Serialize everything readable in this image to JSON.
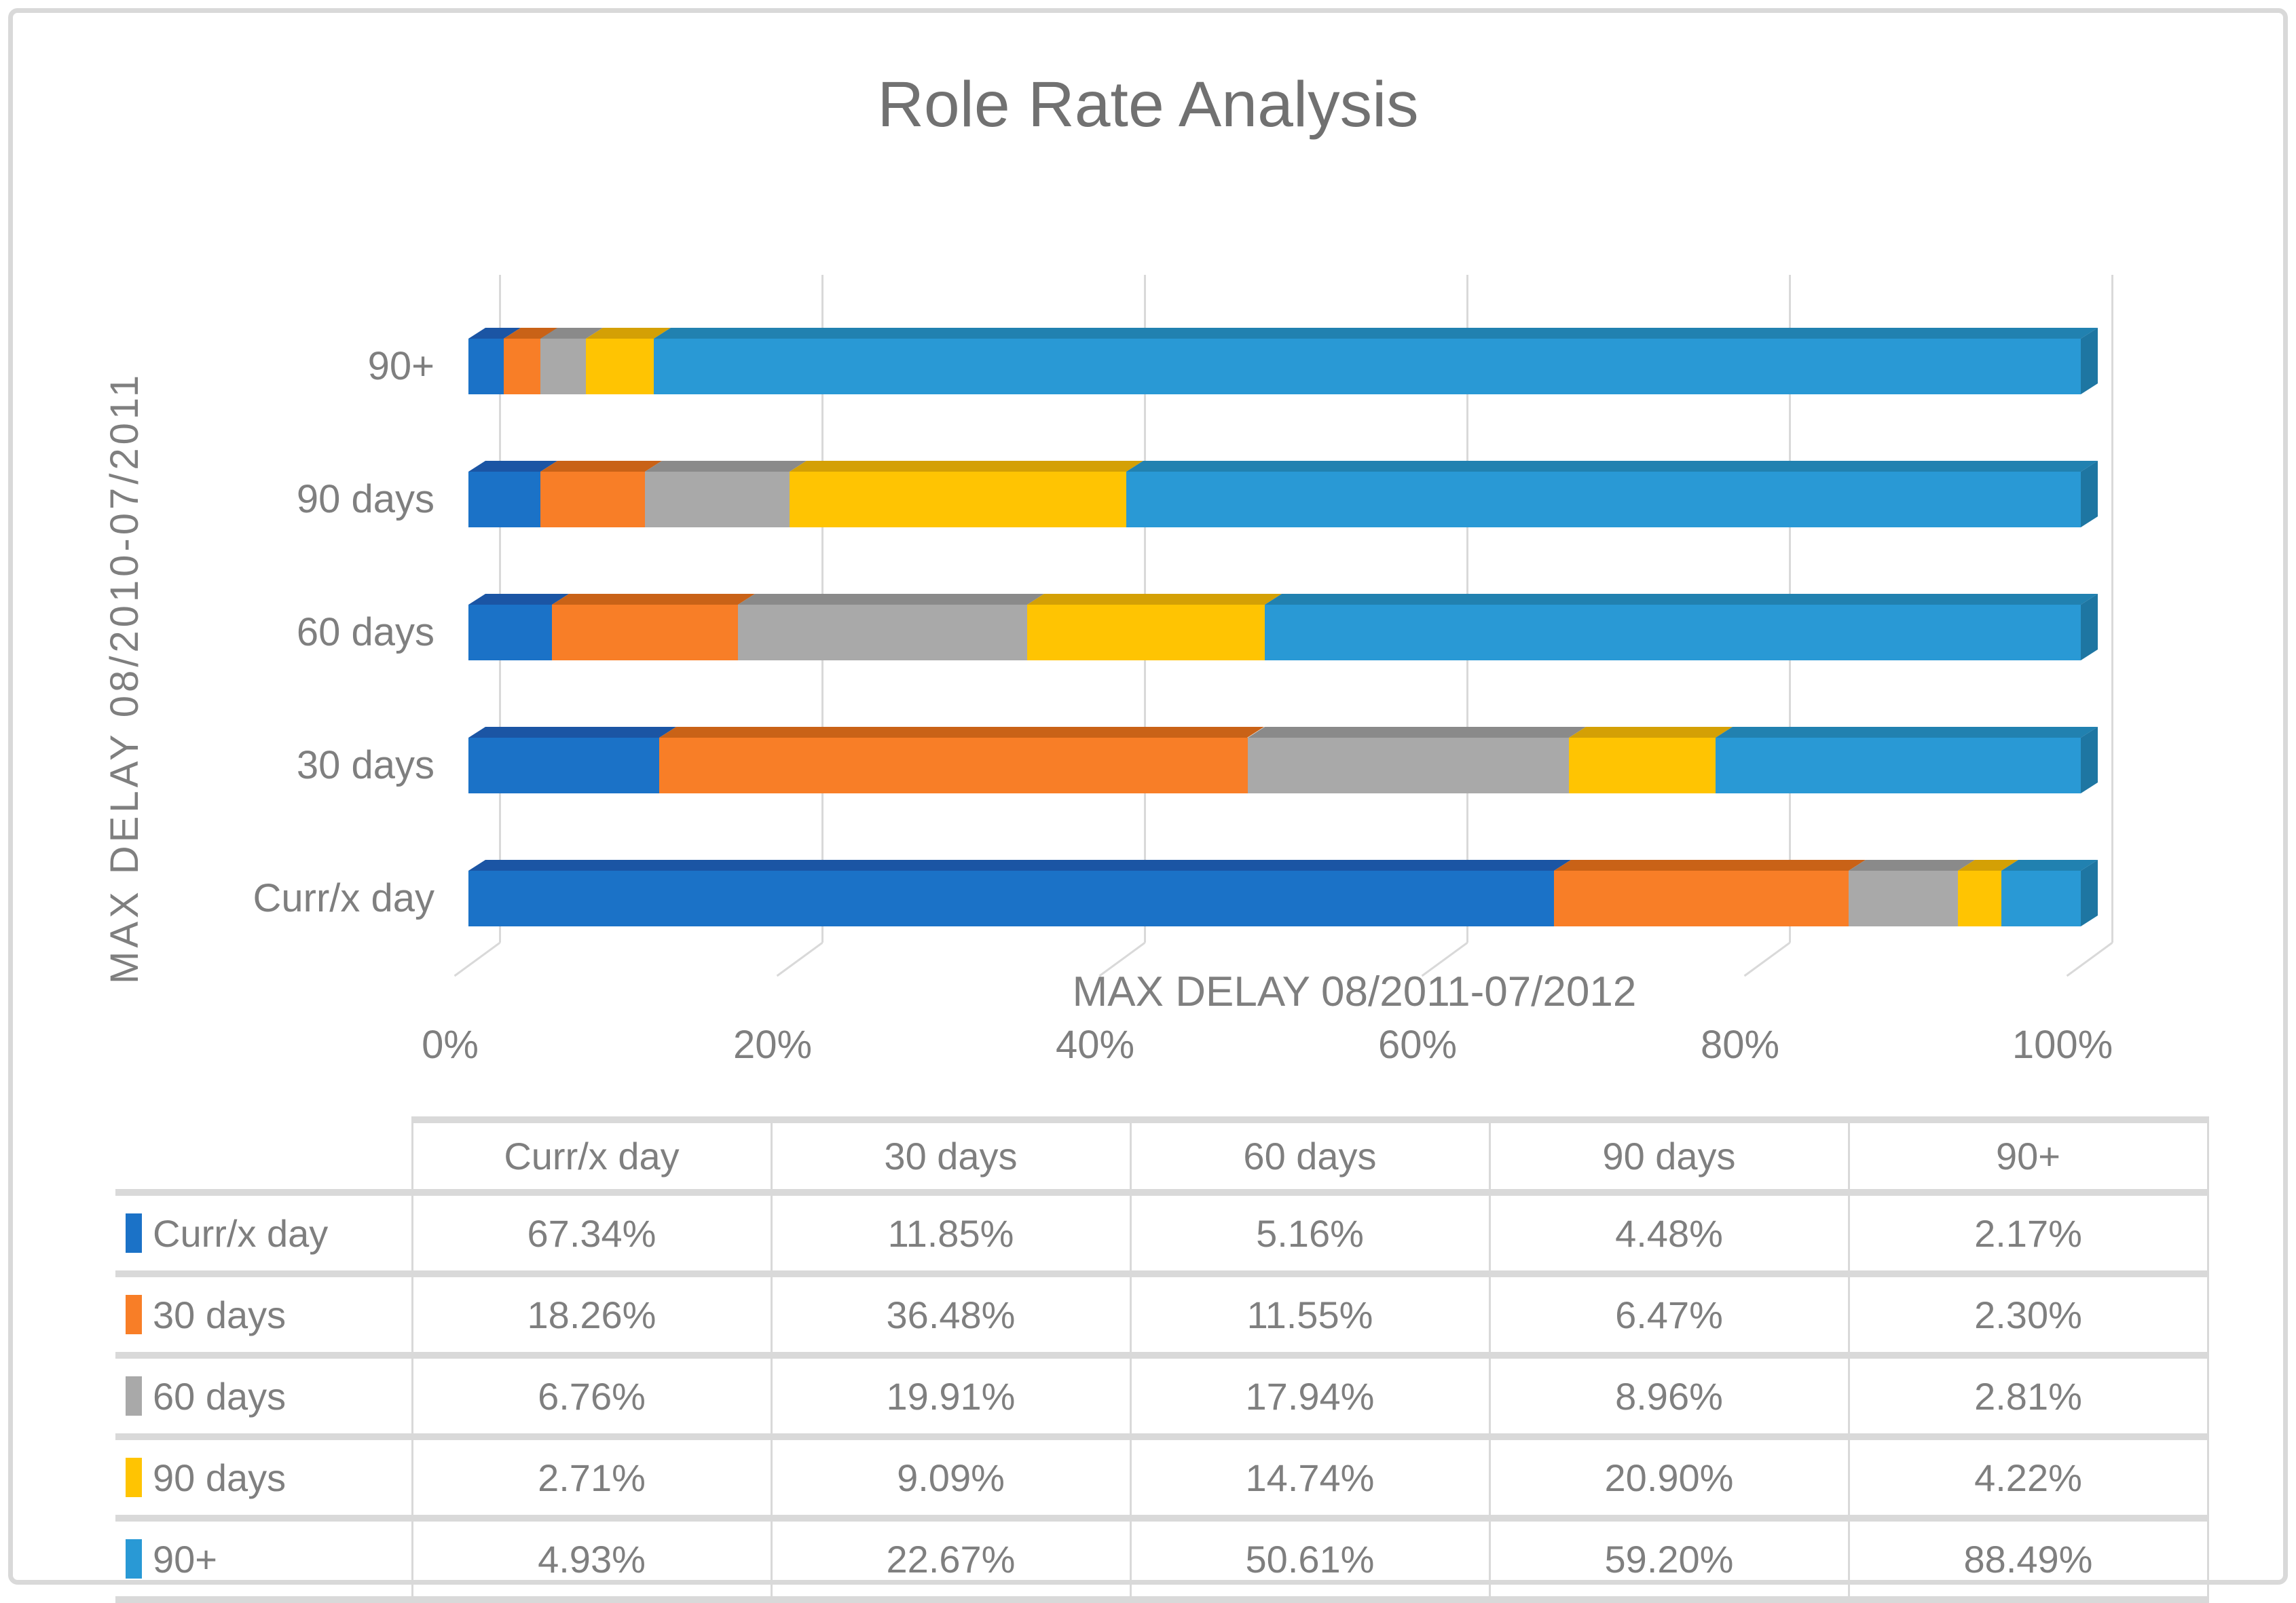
{
  "title": {
    "text": "Role Rate Analysis",
    "color": "#717171"
  },
  "axes": {
    "y_title": "MAX DELAY 08/2010-07/2011",
    "x_title": "MAX DELAY 08/2011-07/2012",
    "x_ticks": [
      "0%",
      "20%",
      "40%",
      "60%",
      "80%",
      "100%"
    ],
    "categories_top_to_bottom": [
      "90+",
      "90 days",
      "60 days",
      "30 days",
      "Curr/x day"
    ],
    "text_color": "#7F7F7F",
    "gridline_color": "#D9D9D9"
  },
  "chart_data": {
    "type": "bar",
    "orientation": "horizontal",
    "stacked": true,
    "percent_stacked": true,
    "style": "3d",
    "title": "Role Rate Analysis",
    "x_axis_title": "MAX DELAY 08/2011-07/2012",
    "y_axis_title": "MAX DELAY 08/2010-07/2011",
    "xlim": [
      0,
      100
    ],
    "x_tick_labels": [
      "0%",
      "20%",
      "40%",
      "60%",
      "80%",
      "100%"
    ],
    "grid": true,
    "legend_position": "table-below",
    "categories": [
      "Curr/x day",
      "30 days",
      "60 days",
      "90 days",
      "90+"
    ],
    "series": [
      {
        "name": "Curr/x day",
        "color": "#1B72C7",
        "color_top": "#1B55A4",
        "color_side": "#174A90",
        "values": [
          67.34,
          11.85,
          5.16,
          4.48,
          2.17
        ]
      },
      {
        "name": "30 days",
        "color": "#F87E27",
        "color_top": "#C96217",
        "color_side": "#B65813",
        "values": [
          18.26,
          36.48,
          11.55,
          6.47,
          2.3
        ]
      },
      {
        "name": "60 days",
        "color": "#A9A9A9",
        "color_top": "#8A8A8A",
        "color_side": "#7D7D7D",
        "values": [
          6.76,
          19.91,
          17.94,
          8.96,
          2.81
        ]
      },
      {
        "name": "90 days",
        "color": "#FFC402",
        "color_top": "#D4A005",
        "color_side": "#C09104",
        "values": [
          2.71,
          9.09,
          14.74,
          20.9,
          4.22
        ]
      },
      {
        "name": "90+",
        "color": "#2999D5",
        "color_top": "#2181B0",
        "color_side": "#1E76A2",
        "values": [
          4.93,
          22.67,
          50.61,
          59.2,
          88.49
        ]
      }
    ]
  },
  "table": {
    "headers": [
      "",
      "Curr/x day",
      "30 days",
      "60 days",
      "90 days",
      "90+"
    ],
    "rows": [
      {
        "label": "Curr/x day",
        "swatch": "#1B72C7",
        "values": [
          "67.34%",
          "11.85%",
          "5.16%",
          "4.48%",
          "2.17%"
        ]
      },
      {
        "label": "30 days",
        "swatch": "#F87E27",
        "values": [
          "18.26%",
          "36.48%",
          "11.55%",
          "6.47%",
          "2.30%"
        ]
      },
      {
        "label": "60 days",
        "swatch": "#A9A9A9",
        "values": [
          "6.76%",
          "19.91%",
          "17.94%",
          "8.96%",
          "2.81%"
        ]
      },
      {
        "label": "90 days",
        "swatch": "#FFC402",
        "values": [
          "2.71%",
          "9.09%",
          "14.74%",
          "20.90%",
          "4.22%"
        ]
      },
      {
        "label": "90+",
        "swatch": "#2999D5",
        "values": [
          "4.93%",
          "22.67%",
          "50.61%",
          "59.20%",
          "88.49%"
        ]
      }
    ],
    "border_color": "#D9D9D9",
    "text_color": "#7F7F7F"
  }
}
